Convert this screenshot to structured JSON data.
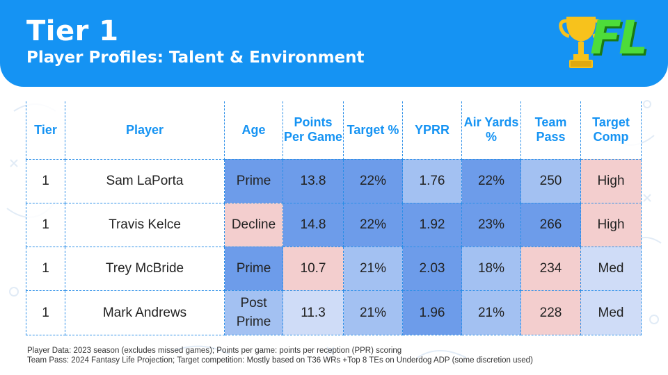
{
  "header": {
    "title": "Tier 1",
    "subtitle": "Player Profiles: Talent & Environment",
    "logo_text": "FL"
  },
  "table": {
    "columns": [
      {
        "label": "Tier"
      },
      {
        "label": "Player"
      },
      {
        "label": "Age"
      },
      {
        "label": "Points Per Game"
      },
      {
        "label": "Target %"
      },
      {
        "label": "YPRR"
      },
      {
        "label": "Air Yards %"
      },
      {
        "label": "Team Pass"
      },
      {
        "label": "Target Comp"
      }
    ],
    "rows": [
      {
        "tier": "1",
        "player": "Sam LaPorta",
        "age": "Prime",
        "ppg": "13.8",
        "target_pct": "22%",
        "yprr": "1.76",
        "air_yards_pct": "22%",
        "team_pass": "250",
        "target_comp": "High"
      },
      {
        "tier": "1",
        "player": "Travis Kelce",
        "age": "Decline",
        "ppg": "14.8",
        "target_pct": "22%",
        "yprr": "1.92",
        "air_yards_pct": "23%",
        "team_pass": "266",
        "target_comp": "High"
      },
      {
        "tier": "1",
        "player": "Trey McBride",
        "age": "Prime",
        "ppg": "10.7",
        "target_pct": "21%",
        "yprr": "2.03",
        "air_yards_pct": "18%",
        "team_pass": "234",
        "target_comp": "Med"
      },
      {
        "tier": "1",
        "player": "Mark Andrews",
        "age": "Post Prime",
        "ppg": "11.3",
        "target_pct": "21%",
        "yprr": "1.96",
        "air_yards_pct": "21%",
        "team_pass": "228",
        "target_comp": "Med"
      }
    ]
  },
  "footnotes": {
    "line1": "Player Data: 2023 season (excludes missed games); Points per game: points per reception (PPR) scoring",
    "line2": "Team Pass: 2024 Fantasy Life Projection; Target competition: Mostly based on T36 WRs +Top 8 TEs on Underdog ADP (some discretion used)"
  },
  "colors": {
    "header_blue": "#1593f3",
    "dark_blue_cell": "#6d9cea",
    "mid_blue_cell": "#a3c1f2",
    "light_blue_cell": "#cfdcf7",
    "pink_cell": "#f3cece",
    "logo_green": "#4ddc3a",
    "trophy_gold": "#f7c21c"
  }
}
